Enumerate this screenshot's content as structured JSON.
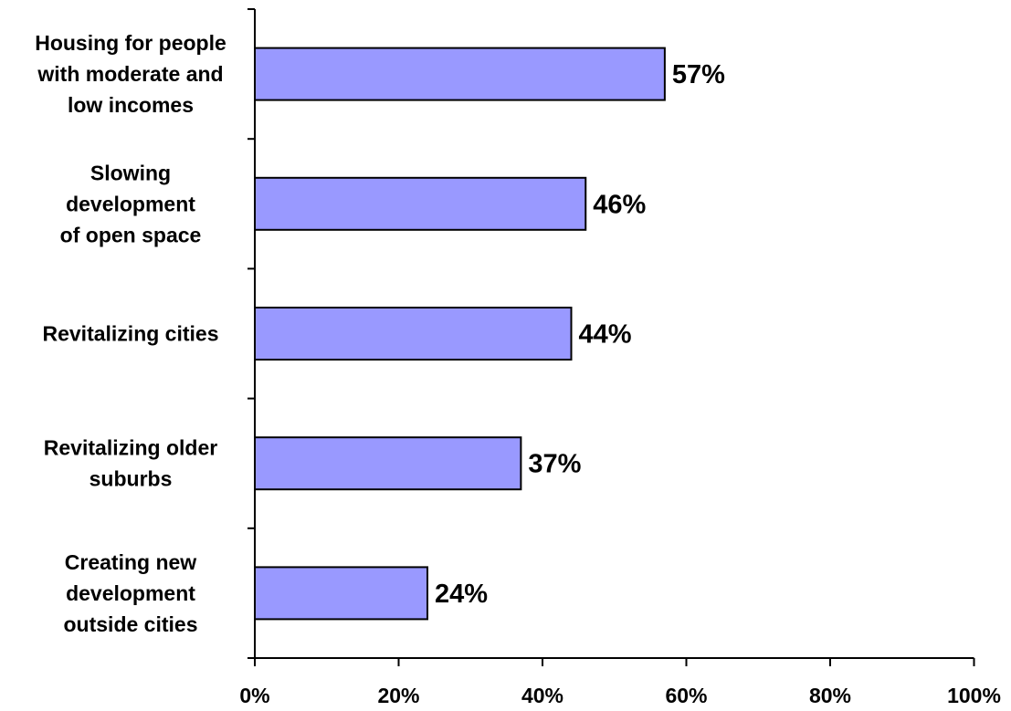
{
  "chart_data": {
    "type": "bar",
    "orientation": "horizontal",
    "categories": [
      [
        "Housing for people",
        "with moderate and",
        "low incomes"
      ],
      [
        "Slowing",
        "development",
        "of open space"
      ],
      [
        "Revitalizing cities"
      ],
      [
        "Revitalizing older",
        "suburbs"
      ],
      [
        "Creating new",
        "development",
        "outside cities"
      ]
    ],
    "values": [
      57,
      46,
      44,
      37,
      24
    ],
    "value_labels": [
      "57%",
      "46%",
      "44%",
      "37%",
      "24%"
    ],
    "xlim": [
      0,
      100
    ],
    "xticks": [
      0,
      20,
      40,
      60,
      80,
      100
    ],
    "xtick_labels": [
      "0%",
      "20%",
      "40%",
      "60%",
      "80%",
      "100%"
    ],
    "title": "",
    "xlabel": "",
    "ylabel": "",
    "grid": false,
    "legend": "none",
    "bar_color": "#9999ff",
    "bar_edge_color": "#000000"
  }
}
